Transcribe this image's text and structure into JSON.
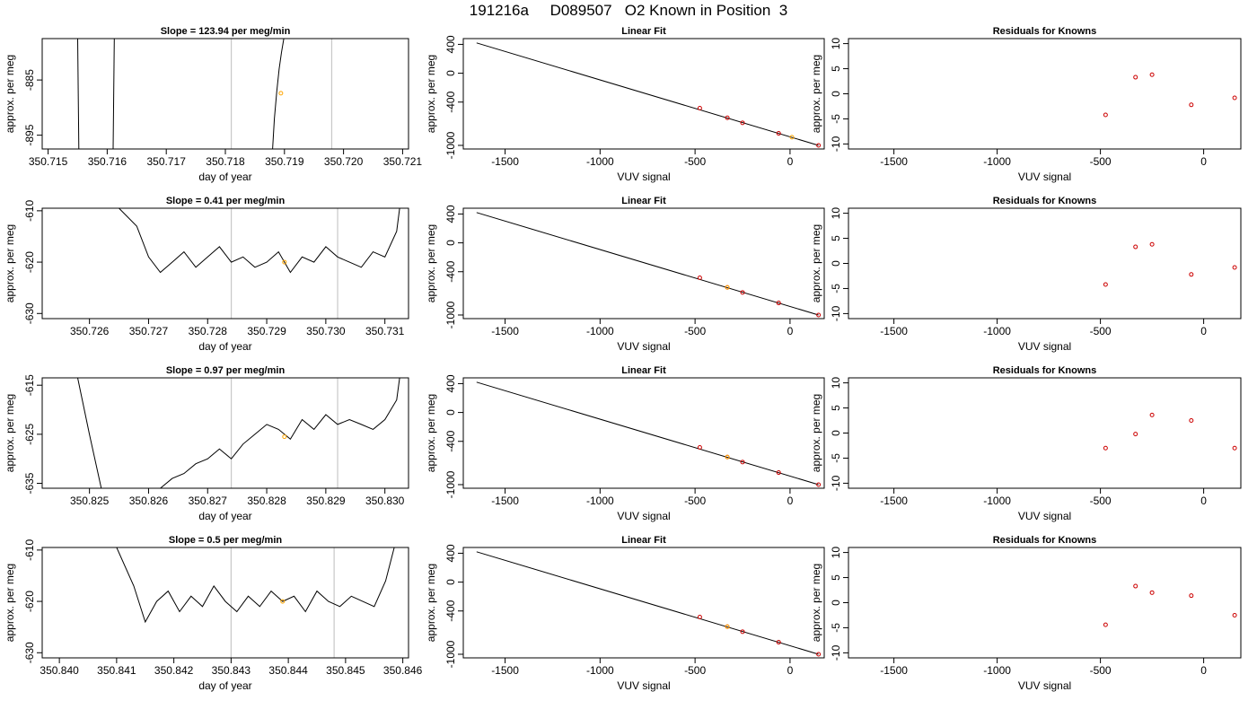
{
  "main_title": "191216a     D089507   O2 Known in Position  3",
  "colors": {
    "line": "#000000",
    "highlight": "#ffa500",
    "residual": "#cc0000",
    "vline": "#c8c8c8"
  },
  "chart_data": [
    {
      "type": "line",
      "title": "Slope =  123.94  per meg/min",
      "xlabel": "day of year",
      "ylabel": "approx. per meg",
      "xlim": [
        350.7149,
        350.7211
      ],
      "ylim": [
        -897.5,
        -877.5
      ],
      "xticks": [
        350.715,
        350.716,
        350.717,
        350.718,
        350.719,
        350.72,
        350.721
      ],
      "xtick_labels": [
        "350.715",
        "350.716",
        "350.717",
        "350.718",
        "350.719",
        "350.720",
        "350.721"
      ],
      "yticks": [
        -885,
        -895
      ],
      "vlines": [
        350.7181,
        350.7198
      ],
      "series": [
        {
          "x": [
            350.7155,
            350.71552
          ],
          "y": [
            -877.5,
            -897.5
          ]
        },
        {
          "x": [
            350.7161,
            350.71612
          ],
          "y": [
            -897.5,
            -877.5
          ]
        },
        {
          "x": [
            350.7188,
            350.71883,
            350.71887,
            350.71891,
            350.71895,
            350.71899
          ],
          "y": [
            -897.5,
            -892,
            -887,
            -883,
            -880,
            -877.5
          ]
        }
      ],
      "highlight_point": {
        "x": 350.71894,
        "y": -887.4
      }
    },
    {
      "type": "line",
      "title": "Linear Fit",
      "xlabel": "VUV signal",
      "ylabel": "approx. per meg",
      "xlim": [
        -1720,
        180
      ],
      "ylim": [
        -1050,
        480
      ],
      "xticks": [
        -1500,
        -1000,
        -500,
        0
      ],
      "xtick_labels": [
        "-1500",
        "-1000",
        "-500",
        "0"
      ],
      "yticks": [
        400,
        0,
        -400,
        -1000
      ],
      "ytick_labels": [
        "400",
        "0",
        "-400",
        "-1000"
      ],
      "fit_line": {
        "x": [
          -1650,
          150
        ],
        "y": [
          420,
          -1000
        ]
      },
      "points": {
        "x": [
          -475,
          -330,
          -250,
          -60,
          150
        ],
        "y": [
          -484,
          -618,
          -687,
          -833,
          -1000
        ]
      },
      "highlight_point": {
        "x": 10,
        "y": -887
      }
    },
    {
      "type": "scatter",
      "title": "Residuals for Knowns",
      "xlabel": "VUV signal",
      "ylabel": "approx. per meg",
      "xlim": [
        -1720,
        180
      ],
      "ylim": [
        -11,
        11
      ],
      "xticks": [
        -1500,
        -1000,
        -500,
        0
      ],
      "xtick_labels": [
        "-1500",
        "-1000",
        "-500",
        "0"
      ],
      "yticks": [
        10,
        5,
        0,
        -5,
        -10
      ],
      "ytick_labels": [
        "10",
        "5",
        "0",
        "-5",
        "-10"
      ],
      "points": {
        "x": [
          -475,
          -330,
          -250,
          -60,
          150
        ],
        "y": [
          -4.2,
          3.3,
          3.8,
          -2.2,
          -0.8
        ]
      }
    },
    {
      "type": "line",
      "title": "Slope =  0.41  per meg/min",
      "xlabel": "day of year",
      "ylabel": "approx. per meg",
      "xlim": [
        350.7252,
        350.7314
      ],
      "ylim": [
        -631,
        -609.5
      ],
      "xticks": [
        350.726,
        350.727,
        350.728,
        350.729,
        350.73,
        350.731
      ],
      "xtick_labels": [
        "350.726",
        "350.727",
        "350.728",
        "350.729",
        "350.730",
        "350.731"
      ],
      "yticks": [
        -610,
        -620,
        -630
      ],
      "vlines": [
        350.7284,
        350.7302
      ],
      "series": [
        {
          "x": [
            350.7265,
            350.7268,
            350.727,
            350.7272,
            350.7274,
            350.7276,
            350.7278,
            350.728,
            350.7282,
            350.7284,
            350.7286,
            350.7288,
            350.729,
            350.7292,
            350.7294,
            350.7296,
            350.7298,
            350.73,
            350.7302,
            350.7304,
            350.7306,
            350.7308,
            350.731,
            350.7312,
            350.73125
          ],
          "y": [
            -609.5,
            -613,
            -619,
            -622,
            -620,
            -618,
            -621,
            -619,
            -617,
            -620,
            -619,
            -621,
            -620,
            -618,
            -622,
            -619,
            -620,
            -617,
            -619,
            -620,
            -621,
            -618,
            -619,
            -614,
            -609.5
          ]
        }
      ],
      "highlight_point": {
        "x": 350.7293,
        "y": -620
      }
    },
    {
      "type": "line",
      "title": "Linear Fit",
      "xlabel": "VUV signal",
      "ylabel": "approx. per meg",
      "xlim": [
        -1720,
        180
      ],
      "ylim": [
        -1050,
        480
      ],
      "xticks": [
        -1500,
        -1000,
        -500,
        0
      ],
      "xtick_labels": [
        "-1500",
        "-1000",
        "-500",
        "0"
      ],
      "yticks": [
        400,
        0,
        -400,
        -1000
      ],
      "ytick_labels": [
        "400",
        "0",
        "-400",
        "-1000"
      ],
      "fit_line": {
        "x": [
          -1650,
          150
        ],
        "y": [
          420,
          -1000
        ]
      },
      "points": {
        "x": [
          -475,
          -330,
          -250,
          -60,
          150
        ],
        "y": [
          -484,
          -618,
          -687,
          -833,
          -1000
        ]
      },
      "highlight_point": {
        "x": -330,
        "y": -618
      }
    },
    {
      "type": "scatter",
      "title": "Residuals for Knowns",
      "xlabel": "VUV signal",
      "ylabel": "approx. per meg",
      "xlim": [
        -1720,
        180
      ],
      "ylim": [
        -11,
        11
      ],
      "xticks": [
        -1500,
        -1000,
        -500,
        0
      ],
      "xtick_labels": [
        "-1500",
        "-1000",
        "-500",
        "0"
      ],
      "yticks": [
        10,
        5,
        0,
        -5,
        -10
      ],
      "ytick_labels": [
        "10",
        "5",
        "0",
        "-5",
        "-10"
      ],
      "points": {
        "x": [
          -475,
          -330,
          -250,
          -60,
          150
        ],
        "y": [
          -4.2,
          3.3,
          3.8,
          -2.2,
          -0.8
        ]
      }
    },
    {
      "type": "line",
      "title": "Slope =  0.97  per meg/min",
      "xlabel": "day of year",
      "ylabel": "approx. per meg",
      "xlim": [
        350.8242,
        350.8304
      ],
      "ylim": [
        -636,
        -613.5
      ],
      "xticks": [
        350.825,
        350.826,
        350.827,
        350.828,
        350.829,
        350.83
      ],
      "xtick_labels": [
        "350.825",
        "350.826",
        "350.827",
        "350.828",
        "350.829",
        "350.830"
      ],
      "yticks": [
        -615,
        -625,
        -635
      ],
      "vlines": [
        350.8274,
        350.8292
      ],
      "series": [
        {
          "x": [
            350.8248,
            350.825,
            350.8252,
            350.8254,
            350.8256,
            350.8258,
            350.826,
            350.8262,
            350.8264,
            350.8266,
            350.8268,
            350.827,
            350.8272,
            350.8274,
            350.8276,
            350.8278,
            350.828,
            350.8282,
            350.8284,
            350.8286,
            350.8288,
            350.829,
            350.8292,
            350.8294,
            350.8296,
            350.8298,
            350.83,
            350.8302,
            350.83025
          ],
          "y": [
            -613.5,
            -625,
            -636,
            -636,
            -636,
            -636,
            -636,
            -636,
            -634,
            -633,
            -631,
            -630,
            -628,
            -630,
            -627,
            -625,
            -623,
            -624,
            -626,
            -622,
            -624,
            -621,
            -623,
            -622,
            -623,
            -624,
            -622,
            -618,
            -613.5
          ]
        }
      ],
      "highlight_point": {
        "x": 350.8283,
        "y": -625.5
      }
    },
    {
      "type": "line",
      "title": "Linear Fit",
      "xlabel": "VUV signal",
      "ylabel": "approx. per meg",
      "xlim": [
        -1720,
        180
      ],
      "ylim": [
        -1050,
        480
      ],
      "xticks": [
        -1500,
        -1000,
        -500,
        0
      ],
      "xtick_labels": [
        "-1500",
        "-1000",
        "-500",
        "0"
      ],
      "yticks": [
        400,
        0,
        -400,
        -1000
      ],
      "ytick_labels": [
        "400",
        "0",
        "-400",
        "-1000"
      ],
      "fit_line": {
        "x": [
          -1650,
          150
        ],
        "y": [
          420,
          -1000
        ]
      },
      "points": {
        "x": [
          -475,
          -330,
          -250,
          -60,
          150
        ],
        "y": [
          -484,
          -618,
          -687,
          -833,
          -1000
        ]
      },
      "highlight_point": {
        "x": -330,
        "y": -618
      }
    },
    {
      "type": "scatter",
      "title": "Residuals for Knowns",
      "xlabel": "VUV signal",
      "ylabel": "approx. per meg",
      "xlim": [
        -1720,
        180
      ],
      "ylim": [
        -11,
        11
      ],
      "xticks": [
        -1500,
        -1000,
        -500,
        0
      ],
      "xtick_labels": [
        "-1500",
        "-1000",
        "-500",
        "0"
      ],
      "yticks": [
        10,
        5,
        0,
        -5,
        -10
      ],
      "ytick_labels": [
        "10",
        "5",
        "0",
        "-5",
        "-10"
      ],
      "points": {
        "x": [
          -475,
          -330,
          -250,
          -60,
          150
        ],
        "y": [
          -3,
          -0.2,
          3.6,
          2.5,
          -3
        ]
      }
    },
    {
      "type": "line",
      "title": "Slope =  0.5  per meg/min",
      "xlabel": "day of year",
      "ylabel": "approx. per meg",
      "xlim": [
        350.8397,
        350.8461
      ],
      "ylim": [
        -631,
        -609.5
      ],
      "xticks": [
        350.84,
        350.841,
        350.842,
        350.843,
        350.844,
        350.845,
        350.846
      ],
      "xtick_labels": [
        "350.840",
        "350.841",
        "350.842",
        "350.843",
        "350.844",
        "350.845",
        "350.846"
      ],
      "yticks": [
        -610,
        -620,
        -630
      ],
      "vlines": [
        350.843,
        350.8448
      ],
      "series": [
        {
          "x": [
            350.841,
            350.8413,
            350.8415,
            350.8417,
            350.8419,
            350.8421,
            350.8423,
            350.8425,
            350.8427,
            350.8429,
            350.8431,
            350.8433,
            350.8435,
            350.8437,
            350.8439,
            350.8441,
            350.8443,
            350.8445,
            350.8447,
            350.8449,
            350.8451,
            350.8453,
            350.8455,
            350.8457,
            350.84585
          ],
          "y": [
            -609.5,
            -617,
            -624,
            -620,
            -618,
            -622,
            -619,
            -621,
            -617,
            -620,
            -622,
            -619,
            -621,
            -618,
            -620,
            -619,
            -622,
            -618,
            -620,
            -621,
            -619,
            -620,
            -621,
            -616,
            -609.5
          ]
        }
      ],
      "highlight_point": {
        "x": 350.8439,
        "y": -620
      }
    },
    {
      "type": "line",
      "title": "Linear Fit",
      "xlabel": "VUV signal",
      "ylabel": "approx. per meg",
      "xlim": [
        -1720,
        180
      ],
      "ylim": [
        -1050,
        480
      ],
      "xticks": [
        -1500,
        -1000,
        -500,
        0
      ],
      "xtick_labels": [
        "-1500",
        "-1000",
        "-500",
        "0"
      ],
      "yticks": [
        400,
        0,
        -400,
        -1000
      ],
      "ytick_labels": [
        "400",
        "0",
        "-400",
        "-1000"
      ],
      "fit_line": {
        "x": [
          -1650,
          150
        ],
        "y": [
          420,
          -1000
        ]
      },
      "points": {
        "x": [
          -475,
          -330,
          -250,
          -60,
          150
        ],
        "y": [
          -484,
          -618,
          -687,
          -833,
          -1000
        ]
      },
      "highlight_point": {
        "x": -330,
        "y": -618
      }
    },
    {
      "type": "scatter",
      "title": "Residuals for Knowns",
      "xlabel": "VUV signal",
      "ylabel": "approx. per meg",
      "xlim": [
        -1720,
        180
      ],
      "ylim": [
        -11,
        11
      ],
      "xticks": [
        -1500,
        -1000,
        -500,
        0
      ],
      "xtick_labels": [
        "-1500",
        "-1000",
        "-500",
        "0"
      ],
      "yticks": [
        10,
        5,
        0,
        -5,
        -10
      ],
      "ytick_labels": [
        "10",
        "5",
        "0",
        "-5",
        "-10"
      ],
      "points": {
        "x": [
          -475,
          -330,
          -250,
          -60,
          150
        ],
        "y": [
          -4.4,
          3.3,
          2,
          1.4,
          -2.5
        ]
      }
    }
  ]
}
